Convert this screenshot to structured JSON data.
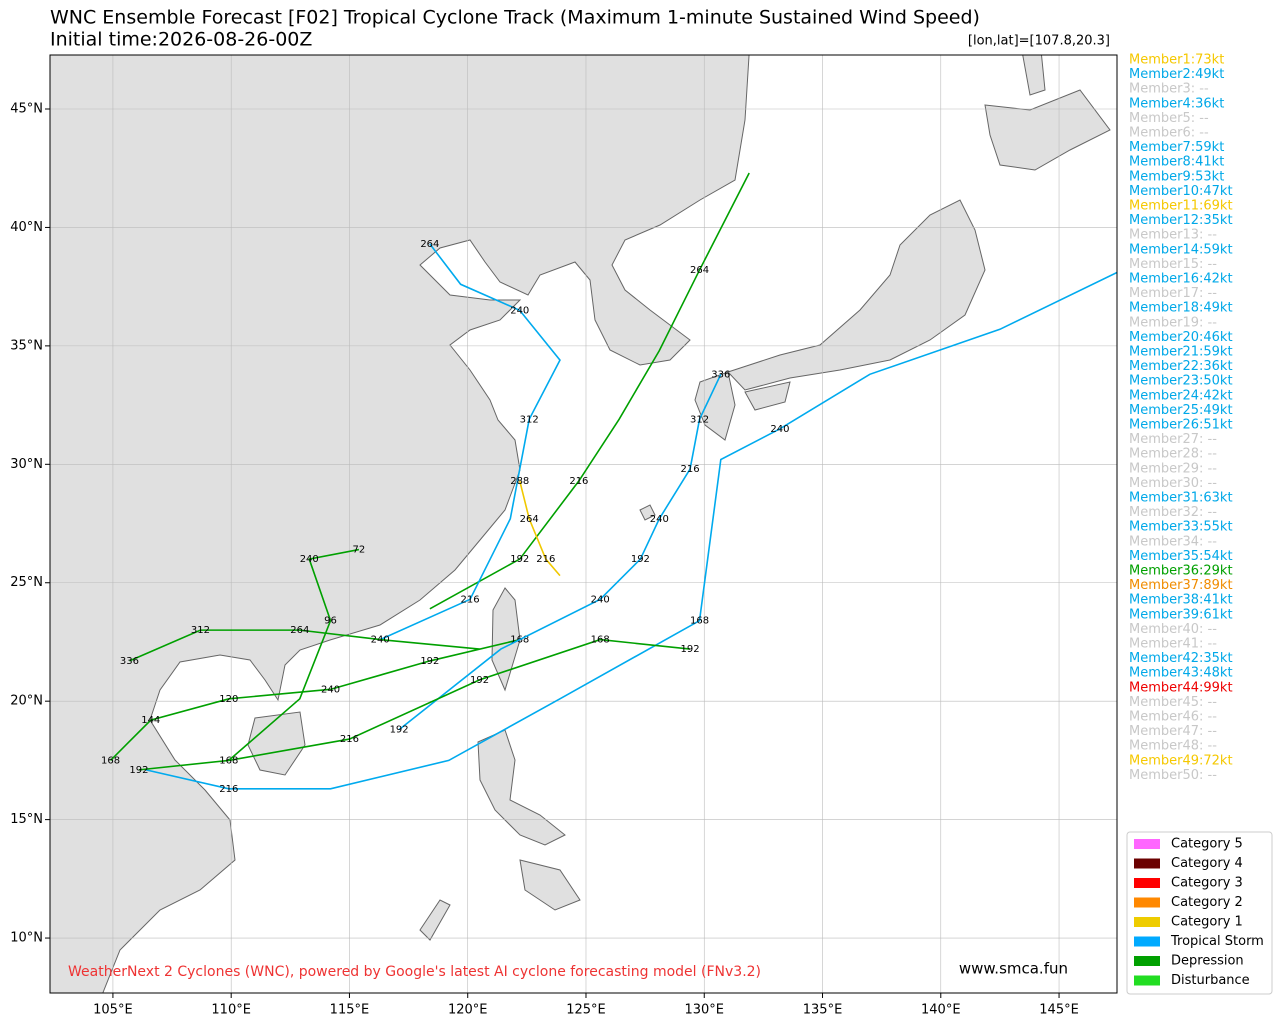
{
  "chart_data": {
    "type": "map",
    "title": "WNC Ensemble Forecast [F02] Tropical Cyclone Track (Maximum 1-minute Sustained Wind Speed)",
    "subtitle": "Initial time:2026-08-26-00Z",
    "coord_label": "[lon,lat]=[107.8,20.3]",
    "source_note": "WeatherNext 2 Cyclones (WNC), powered by Google's latest AI cyclone forecasting model (FNv3.2)",
    "website": "www.smca.fun",
    "xlim": [
      102.34,
      147.45
    ],
    "ylim": [
      7.68,
      47.28
    ],
    "grid": true,
    "xticks": [
      {
        "value": 105,
        "label": "105°E"
      },
      {
        "value": 110,
        "label": "110°E"
      },
      {
        "value": 115,
        "label": "115°E"
      },
      {
        "value": 120,
        "label": "120°E"
      },
      {
        "value": 125,
        "label": "125°E"
      },
      {
        "value": 130,
        "label": "130°E"
      },
      {
        "value": 135,
        "label": "135°E"
      },
      {
        "value": 140,
        "label": "140°E"
      },
      {
        "value": 145,
        "label": "145°E"
      }
    ],
    "yticks": [
      {
        "value": 10,
        "label": "10°N"
      },
      {
        "value": 15,
        "label": "15°N"
      },
      {
        "value": 20,
        "label": "20°N"
      },
      {
        "value": 25,
        "label": "25°N"
      },
      {
        "value": 30,
        "label": "30°N"
      },
      {
        "value": 35,
        "label": "35°N"
      },
      {
        "value": 40,
        "label": "40°N"
      },
      {
        "value": 45,
        "label": "45°N"
      }
    ],
    "tracks": [
      {
        "color": "#00aaee",
        "lon": [
          106.4,
          109.9,
          114.2,
          119.2,
          123.9,
          129.8,
          130.7,
          133.2,
          137.0,
          142.5,
          147.45
        ],
        "lat": [
          17.1,
          16.3,
          16.3,
          17.5,
          20.1,
          23.4,
          30.2,
          31.5,
          33.8,
          35.7,
          38.1
        ],
        "labels": [
          null,
          216,
          null,
          null,
          null,
          168,
          null,
          240,
          null,
          null,
          null
        ]
      },
      {
        "color": "#00a000",
        "lon": [
          118.4,
          122.2,
          124.7,
          126.4,
          128.1,
          129.8,
          131.9
        ],
        "lat": [
          23.9,
          26.0,
          29.3,
          31.9,
          34.8,
          38.2,
          42.3
        ],
        "labels": [
          null,
          192,
          216,
          null,
          null,
          264,
          null
        ]
      },
      {
        "color": "#00aaee",
        "lon": [
          116.3,
          120.1,
          121.8,
          122.6,
          123.9,
          122.2,
          119.7,
          118.4
        ],
        "lat": [
          22.6,
          24.3,
          27.7,
          31.9,
          34.4,
          36.5,
          37.6,
          39.3
        ],
        "labels": [
          null,
          216,
          null,
          312,
          null,
          240,
          null,
          264
        ]
      },
      {
        "color": "#00a000",
        "lon": [
          122.2,
          118.4,
          114.2,
          109.9,
          106.6,
          104.9
        ],
        "lat": [
          22.6,
          21.7,
          20.5,
          20.1,
          19.2,
          17.5
        ],
        "labels": [
          168,
          192,
          240,
          120,
          144,
          168
        ]
      },
      {
        "color": "#00aaee",
        "lon": [
          117.1,
          121.4,
          125.6,
          127.3,
          128.1,
          129.4,
          129.8,
          130.7
        ],
        "lat": [
          18.8,
          22.2,
          24.3,
          26.0,
          27.7,
          29.8,
          31.9,
          33.8
        ],
        "labels": [
          192,
          null,
          240,
          192,
          240,
          216,
          312,
          336
        ]
      },
      {
        "color": "#00a000",
        "lon": [
          129.4,
          125.6,
          120.5,
          115.0,
          109.9,
          106.1
        ],
        "lat": [
          22.2,
          22.6,
          20.9,
          18.4,
          17.5,
          17.1
        ],
        "labels": [
          192,
          168,
          192,
          216,
          168,
          192
        ]
      },
      {
        "color": "#f0c800",
        "lon": [
          122.2,
          122.6,
          123.3,
          123.9
        ],
        "lat": [
          29.3,
          27.7,
          26.0,
          25.3
        ],
        "labels": [
          288,
          264,
          216,
          null
        ]
      },
      {
        "color": "#00a000",
        "lon": [
          109.9,
          112.9,
          114.2,
          113.3,
          115.4
        ],
        "lat": [
          17.5,
          20.1,
          23.4,
          26.0,
          26.4
        ],
        "labels": [
          null,
          null,
          96,
          240,
          72
        ]
      },
      {
        "color": "#00a000",
        "lon": [
          120.5,
          116.3,
          112.9,
          108.7,
          105.7
        ],
        "lat": [
          22.2,
          22.6,
          23.0,
          23.0,
          21.7
        ],
        "labels": [
          null,
          240,
          264,
          312,
          336
        ]
      }
    ],
    "members": [
      {
        "label": "Member1:73kt",
        "color": "#f5c800"
      },
      {
        "label": "Member2:49kt",
        "color": "#00a8e8"
      },
      {
        "label": "Member3: --",
        "color": "#c8c8c8"
      },
      {
        "label": "Member4:36kt",
        "color": "#00a8e8"
      },
      {
        "label": "Member5: --",
        "color": "#c8c8c8"
      },
      {
        "label": "Member6: --",
        "color": "#c8c8c8"
      },
      {
        "label": "Member7:59kt",
        "color": "#00a8e8"
      },
      {
        "label": "Member8:41kt",
        "color": "#00a8e8"
      },
      {
        "label": "Member9:53kt",
        "color": "#00a8e8"
      },
      {
        "label": "Member10:47kt",
        "color": "#00a8e8"
      },
      {
        "label": "Member11:69kt",
        "color": "#f5c800"
      },
      {
        "label": "Member12:35kt",
        "color": "#00a8e8"
      },
      {
        "label": "Member13: --",
        "color": "#c8c8c8"
      },
      {
        "label": "Member14:59kt",
        "color": "#00a8e8"
      },
      {
        "label": "Member15: --",
        "color": "#c8c8c8"
      },
      {
        "label": "Member16:42kt",
        "color": "#00a8e8"
      },
      {
        "label": "Member17: --",
        "color": "#c8c8c8"
      },
      {
        "label": "Member18:49kt",
        "color": "#00a8e8"
      },
      {
        "label": "Member19: --",
        "color": "#c8c8c8"
      },
      {
        "label": "Member20:46kt",
        "color": "#00a8e8"
      },
      {
        "label": "Member21:59kt",
        "color": "#00a8e8"
      },
      {
        "label": "Member22:36kt",
        "color": "#00a8e8"
      },
      {
        "label": "Member23:50kt",
        "color": "#00a8e8"
      },
      {
        "label": "Member24:42kt",
        "color": "#00a8e8"
      },
      {
        "label": "Member25:49kt",
        "color": "#00a8e8"
      },
      {
        "label": "Member26:51kt",
        "color": "#00a8e8"
      },
      {
        "label": "Member27: --",
        "color": "#c8c8c8"
      },
      {
        "label": "Member28: --",
        "color": "#c8c8c8"
      },
      {
        "label": "Member29: --",
        "color": "#c8c8c8"
      },
      {
        "label": "Member30: --",
        "color": "#c8c8c8"
      },
      {
        "label": "Member31:63kt",
        "color": "#00a8e8"
      },
      {
        "label": "Member32: --",
        "color": "#c8c8c8"
      },
      {
        "label": "Member33:55kt",
        "color": "#00a8e8"
      },
      {
        "label": "Member34: --",
        "color": "#c8c8c8"
      },
      {
        "label": "Member35:54kt",
        "color": "#00a8e8"
      },
      {
        "label": "Member36:29kt",
        "color": "#00a000"
      },
      {
        "label": "Member37:89kt",
        "color": "#f08c00"
      },
      {
        "label": "Member38:41kt",
        "color": "#00a8e8"
      },
      {
        "label": "Member39:61kt",
        "color": "#00a8e8"
      },
      {
        "label": "Member40: --",
        "color": "#c8c8c8"
      },
      {
        "label": "Member41: --",
        "color": "#c8c8c8"
      },
      {
        "label": "Member42:35kt",
        "color": "#00a8e8"
      },
      {
        "label": "Member43:48kt",
        "color": "#00a8e8"
      },
      {
        "label": "Member44:99kt",
        "color": "#ee0000"
      },
      {
        "label": "Member45: --",
        "color": "#c8c8c8"
      },
      {
        "label": "Member46: --",
        "color": "#c8c8c8"
      },
      {
        "label": "Member47: --",
        "color": "#c8c8c8"
      },
      {
        "label": "Member48: --",
        "color": "#c8c8c8"
      },
      {
        "label": "Member49:72kt",
        "color": "#f5c800"
      },
      {
        "label": "Member50: --",
        "color": "#c8c8c8"
      }
    ],
    "legend": [
      {
        "label": "Category 5",
        "color": "#ff66ff"
      },
      {
        "label": "Category 4",
        "color": "#6b0000"
      },
      {
        "label": "Category 3",
        "color": "#ff0000"
      },
      {
        "label": "Category 2",
        "color": "#ff8800"
      },
      {
        "label": "Category 1",
        "color": "#eecc00"
      },
      {
        "label": "Tropical Storm",
        "color": "#00aaff"
      },
      {
        "label": "Depression",
        "color": "#00a000"
      },
      {
        "label": "Disturbance",
        "color": "#22dd22"
      }
    ]
  }
}
